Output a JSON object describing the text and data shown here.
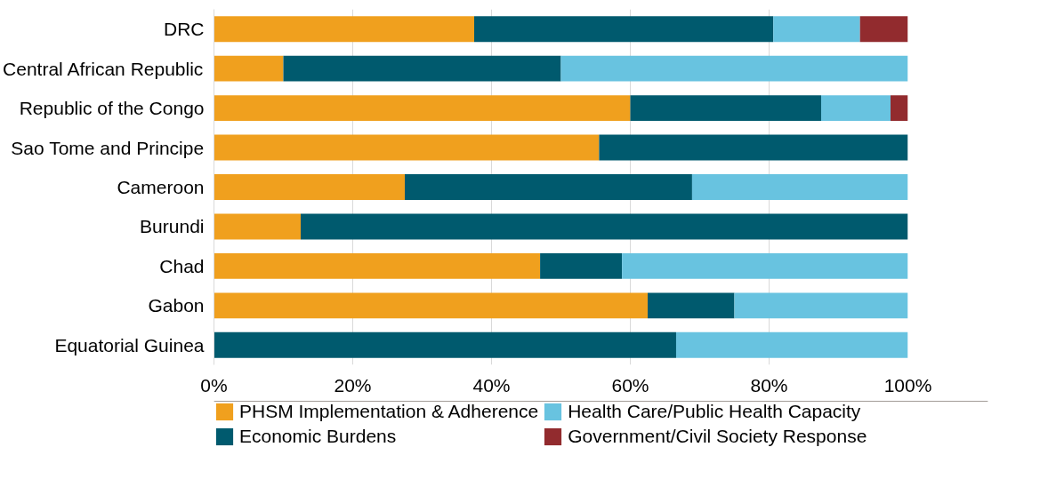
{
  "chart_data": {
    "type": "bar",
    "orientation": "horizontal",
    "stacked": true,
    "categories": [
      "DRC",
      "Central African Republic",
      "Republic of the Congo",
      "Sao Tome and Principe",
      "Cameroon",
      "Burundi",
      "Chad",
      "Gabon",
      "Equatorial Guinea"
    ],
    "series": [
      {
        "name": "PHSM Implementation & Adherence",
        "color": "#f0a01e",
        "values": [
          37.5,
          10,
          60,
          55.5,
          27.5,
          12.5,
          47,
          62.5,
          0
        ]
      },
      {
        "name": "Economic Burdens",
        "color": "#005a6e",
        "values": [
          43.1,
          40,
          27.5,
          44.5,
          41.4,
          87.5,
          11.8,
          12.5,
          66.6
        ]
      },
      {
        "name": "Health Care/Public Health Capacity",
        "color": "#68c3e0",
        "values": [
          12.5,
          50,
          10,
          0,
          31.1,
          0,
          41.2,
          25,
          33.4
        ]
      },
      {
        "name": "Government/Civil Society Response",
        "color": "#922b2e",
        "values": [
          6.9,
          0,
          2.5,
          0,
          0,
          0,
          0,
          0,
          0
        ]
      }
    ],
    "xlim": [
      0,
      100
    ],
    "xticks": [
      {
        "value": 0,
        "label": "0%"
      },
      {
        "value": 20,
        "label": "20%"
      },
      {
        "value": 40,
        "label": "40%"
      },
      {
        "value": 60,
        "label": "60%"
      },
      {
        "value": 80,
        "label": "80%"
      },
      {
        "value": 100,
        "label": "100%"
      }
    ],
    "grid": "x",
    "legend": "bottom"
  }
}
